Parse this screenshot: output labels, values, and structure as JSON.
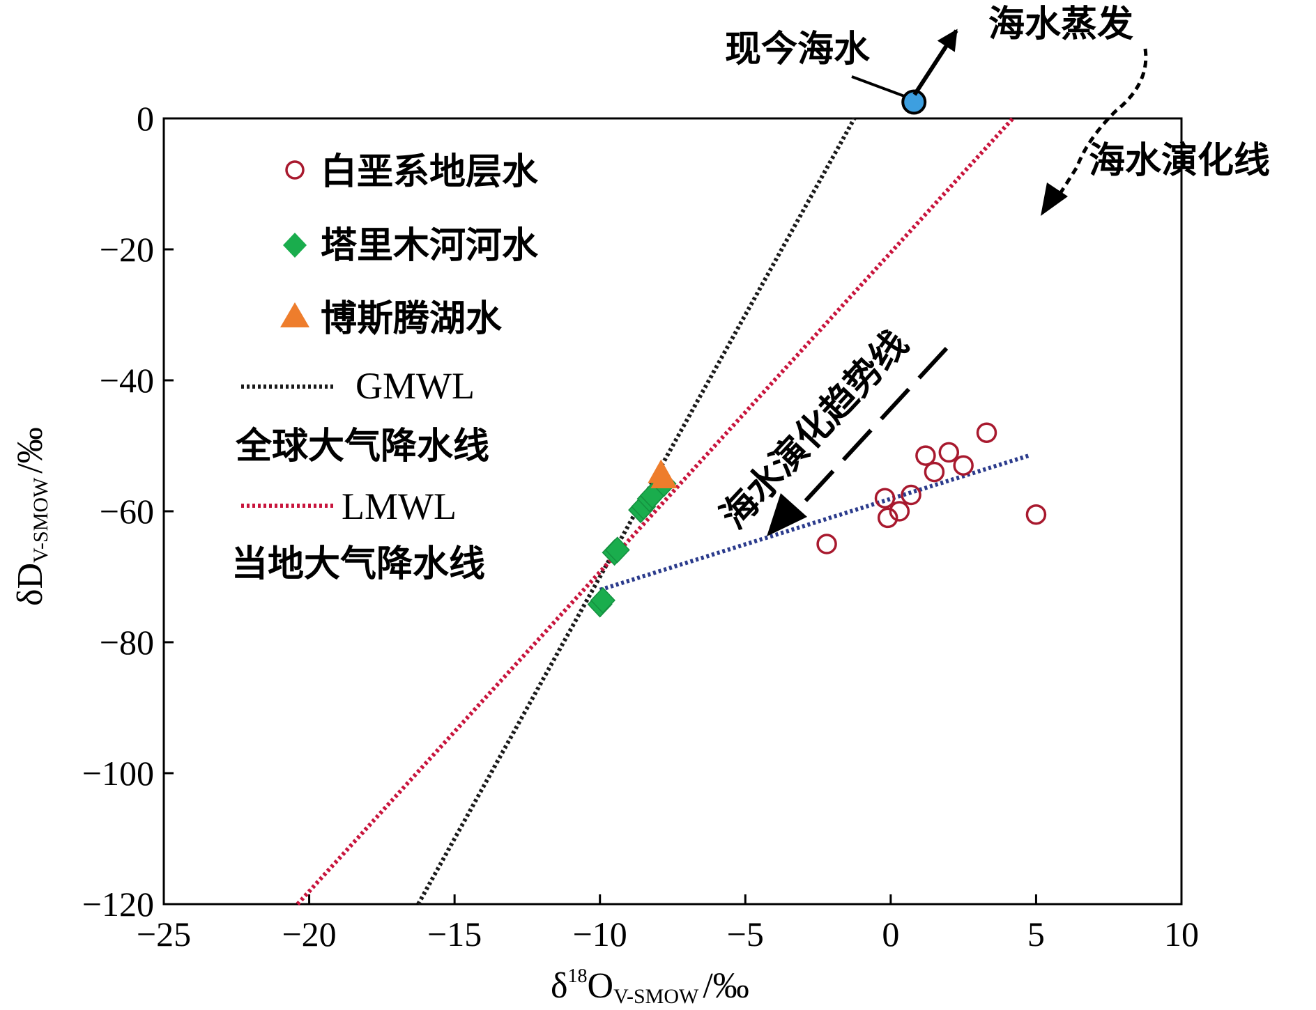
{
  "chart_data": {
    "type": "scatter",
    "xlabel": "δ¹⁸O V-SMOW /‰",
    "ylabel": "δD V-SMOW /‰",
    "xlabel_parts": {
      "symbol": "δ",
      "sup": "18",
      "main": "O",
      "sub": "V-SMOW",
      "unit": "/‰"
    },
    "ylabel_parts": {
      "main": "δD",
      "sub": "V-SMOW",
      "unit": "/‰"
    },
    "xlim": [
      -25,
      10
    ],
    "ylim": [
      -120,
      0
    ],
    "xticks": [
      -25,
      -20,
      -15,
      -10,
      -5,
      0,
      5,
      10
    ],
    "yticks": [
      0,
      -20,
      -40,
      -60,
      -80,
      -100,
      -120
    ],
    "grid": false,
    "legend_position": "top-left",
    "series": [
      {
        "name": "白垩系地层水",
        "marker": "open-circle",
        "color": "#a8192e",
        "points": [
          [
            -2.2,
            -65
          ],
          [
            -0.2,
            -58
          ],
          [
            -0.1,
            -61
          ],
          [
            0.3,
            -60
          ],
          [
            0.7,
            -57.5
          ],
          [
            1.2,
            -51.5
          ],
          [
            1.5,
            -54
          ],
          [
            2.0,
            -51
          ],
          [
            2.5,
            -53
          ],
          [
            3.3,
            -48
          ],
          [
            5.0,
            -60.5
          ]
        ]
      },
      {
        "name": "塔里木河河水",
        "marker": "diamond",
        "color": "#1aad4d",
        "points": [
          [
            -10.0,
            -74.2
          ],
          [
            -9.9,
            -73.6
          ],
          [
            -9.5,
            -66.3
          ],
          [
            -9.4,
            -65.9
          ],
          [
            -8.6,
            -59.8
          ],
          [
            -8.5,
            -59.3
          ],
          [
            -8.3,
            -58.1
          ],
          [
            -8.2,
            -57.6
          ],
          [
            -7.8,
            -55.8
          ]
        ]
      },
      {
        "name": "博斯腾湖水",
        "marker": "triangle",
        "color": "#ee7d2c",
        "points": [
          [
            -7.9,
            -54.2
          ],
          [
            -7.8,
            -55.0
          ]
        ]
      }
    ],
    "lines": [
      {
        "name": "GMWL",
        "description": "全球大气降水线",
        "color": "#1a1a1a",
        "from": [
          -16.25,
          -120
        ],
        "to": [
          -1.25,
          0
        ]
      },
      {
        "name": "LMWL",
        "description": "当地大气降水线",
        "color": "#c8143c",
        "from": [
          -20.4,
          -120
        ],
        "to": [
          4.2,
          0
        ]
      },
      {
        "name": "",
        "description": "",
        "color": "#2b3b8c",
        "from": [
          -10.0,
          -72
        ],
        "to": [
          4.75,
          -51.5
        ]
      }
    ],
    "seawater_point": {
      "label": "现今海水",
      "x": 0.8,
      "y": 2.5,
      "color": "#3d9fe0"
    },
    "annotations": {
      "evaporation": "海水蒸发",
      "evolution_line": "海水演化线",
      "trend_line": "海水演化趋势线"
    }
  }
}
